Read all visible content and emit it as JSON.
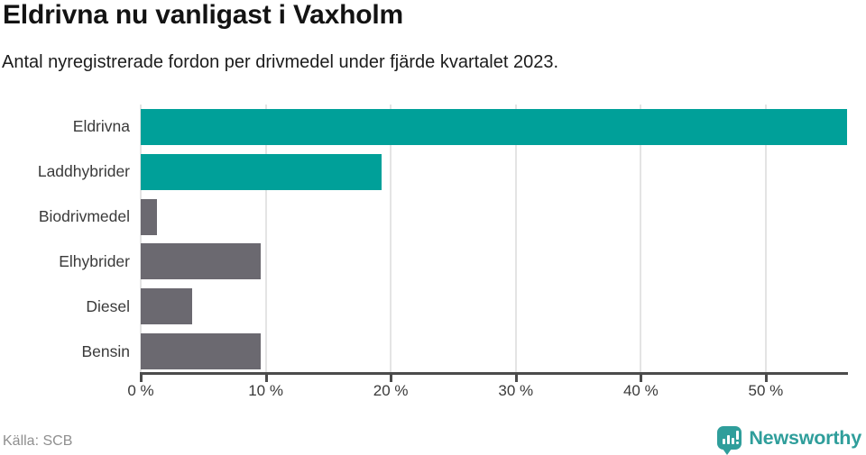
{
  "header": {
    "title": "Eldrivna nu vanligast i Vaxholm",
    "subtitle": "Antal nyregistrerade fordon per drivmedel under fjärde kvartalet 2023."
  },
  "chart_data": {
    "type": "bar",
    "orientation": "horizontal",
    "title": "Eldrivna nu vanligast i Vaxholm",
    "subtitle": "Antal nyregistrerade fordon per drivmedel under fjärde kvartalet 2023.",
    "categories": [
      "Eldrivna",
      "Laddhybrider",
      "Biodrivmedel",
      "Elhybrider",
      "Diesel",
      "Bensin"
    ],
    "values": [
      56.5,
      19.3,
      1.3,
      9.6,
      4.1,
      9.6
    ],
    "unit": "%",
    "bar_colors": [
      "#00a099",
      "#00a099",
      "#6b6970",
      "#6b6970",
      "#6b6970",
      "#6b6970"
    ],
    "xlim": [
      0,
      56.5
    ],
    "xtick_values": [
      0,
      10,
      20,
      30,
      40,
      50
    ],
    "xtick_labels": [
      "0 %",
      "10 %",
      "20 %",
      "30 %",
      "40 %",
      "50 %"
    ],
    "grid": "vertical-gridlines-on",
    "legend": "none",
    "accent_color": "#00a099",
    "neutral_color": "#6b6970"
  },
  "footer": {
    "source": "Källa: SCB",
    "logo_text": "Newsworthy",
    "logo_color": "#2f9e9b",
    "logo_icon": "speech-bubble-bar-chart-icon"
  }
}
